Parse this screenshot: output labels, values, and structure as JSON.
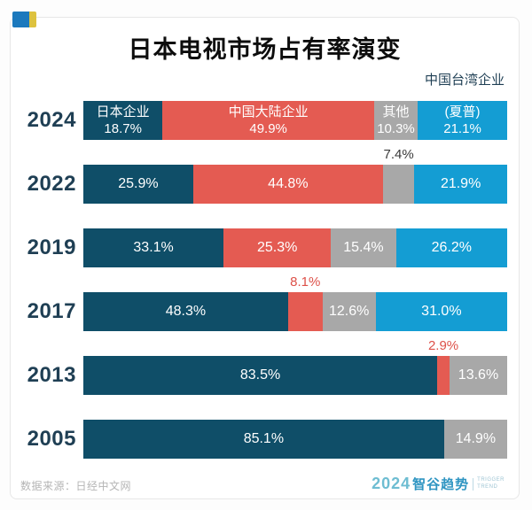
{
  "header": {
    "title": "日本电视市场占有率演变",
    "taiwan_note": "中国台湾企业"
  },
  "footer": {
    "source": "数据来源：日经中文网",
    "logo": {
      "year": "2024",
      "brand": "智谷趋势",
      "tagline_top": "TRIGGER",
      "tagline_bottom": "TREND"
    }
  },
  "chart_data": {
    "type": "bar",
    "orientation": "horizontal-stacked",
    "title": "日本电视市场占有率演变",
    "unit": "%",
    "x_range": [
      0,
      100
    ],
    "grid": false,
    "series_colors": {
      "japan": "#0f4e68",
      "china_mainland": "#e45b52",
      "other": "#a8a8a8",
      "taiwan": "#149dd3"
    },
    "series_legend": {
      "japan": "日本企业",
      "china_mainland": "中国大陆企业",
      "other": "其他",
      "taiwan": "中国台湾企业（夏普）"
    },
    "rows": [
      {
        "year": "2024",
        "segments": [
          {
            "series": "japan",
            "name": "日本企业",
            "value": 18.7,
            "display": "18.7%"
          },
          {
            "series": "china_mainland",
            "name": "中国大陆企业",
            "value": 49.9,
            "display": "49.9%"
          },
          {
            "series": "other",
            "name": "其他",
            "value": 10.3,
            "display": "10.3%"
          },
          {
            "series": "taiwan",
            "name": "(夏普)",
            "value": 21.1,
            "display": "21.1%"
          }
        ]
      },
      {
        "year": "2022",
        "segments": [
          {
            "series": "japan",
            "value": 25.9,
            "display": "25.9%"
          },
          {
            "series": "china_mainland",
            "value": 44.8,
            "display": "44.8%"
          },
          {
            "series": "other",
            "value": 7.4,
            "display": "7.4%",
            "callout": true,
            "callout_color": "#3a3a3a"
          },
          {
            "series": "taiwan",
            "value": 21.9,
            "display": "21.9%"
          }
        ]
      },
      {
        "year": "2019",
        "segments": [
          {
            "series": "japan",
            "value": 33.1,
            "display": "33.1%"
          },
          {
            "series": "china_mainland",
            "value": 25.3,
            "display": "25.3%"
          },
          {
            "series": "other",
            "value": 15.4,
            "display": "15.4%"
          },
          {
            "series": "taiwan",
            "value": 26.2,
            "display": "26.2%"
          }
        ]
      },
      {
        "year": "2017",
        "segments": [
          {
            "series": "japan",
            "value": 48.3,
            "display": "48.3%"
          },
          {
            "series": "china_mainland",
            "value": 8.1,
            "display": "8.1%",
            "callout": true,
            "callout_color": "#dd5149"
          },
          {
            "series": "other",
            "value": 12.6,
            "display": "12.6%"
          },
          {
            "series": "taiwan",
            "value": 31.0,
            "display": "31.0%"
          }
        ]
      },
      {
        "year": "2013",
        "segments": [
          {
            "series": "japan",
            "value": 83.5,
            "display": "83.5%"
          },
          {
            "series": "china_mainland",
            "value": 2.9,
            "display": "2.9%",
            "callout": true,
            "callout_color": "#dd5149"
          },
          {
            "series": "other",
            "value": 13.6,
            "display": "13.6%"
          }
        ]
      },
      {
        "year": "2005",
        "segments": [
          {
            "series": "japan",
            "value": 85.1,
            "display": "85.1%"
          },
          {
            "series": "other",
            "value": 14.9,
            "display": "14.9%"
          }
        ]
      }
    ]
  }
}
